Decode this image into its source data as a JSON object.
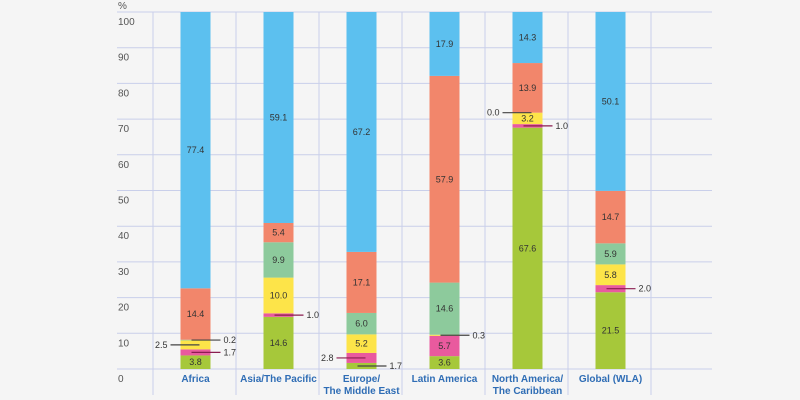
{
  "chart_data": {
    "type": "bar",
    "stacked": true,
    "ylabel": "%",
    "ylim": [
      0,
      100
    ],
    "yticks": [
      "0",
      "10",
      "20",
      "30",
      "40",
      "50",
      "60",
      "70",
      "80",
      "90",
      "100"
    ],
    "grid": true,
    "categories": [
      [
        "Africa"
      ],
      [
        "Asia/The Pacific"
      ],
      [
        "Europe/",
        "The Middle East"
      ],
      [
        "Latin America"
      ],
      [
        "North America/",
        "The Caribbean"
      ],
      [
        "Global (WLA)"
      ]
    ],
    "series": [
      {
        "color": "#a6c83a",
        "values": [
          3.8,
          14.6,
          1.7,
          3.6,
          67.6,
          21.5
        ]
      },
      {
        "color": "#e95a9e",
        "values": [
          1.7,
          1.0,
          2.8,
          5.7,
          1.0,
          2.0
        ]
      },
      {
        "color": "#fde449",
        "values": [
          2.5,
          10.0,
          5.2,
          0.3,
          3.2,
          5.8
        ]
      },
      {
        "color": "#8dca9c",
        "values": [
          0.2,
          9.9,
          6.0,
          14.6,
          0.0,
          5.9
        ]
      },
      {
        "color": "#f2866b",
        "values": [
          14.4,
          5.4,
          17.1,
          57.9,
          13.9,
          14.7
        ]
      },
      {
        "color": "#5cc0ef",
        "values": [
          77.4,
          59.1,
          67.2,
          17.9,
          14.3,
          50.1
        ]
      }
    ],
    "value_labels": [
      [
        "3.8",
        "1.7",
        "2.5",
        "0.2",
        "14.4",
        "77.4"
      ],
      [
        "14.6",
        "1.0",
        "10.0",
        "9.9",
        "5.4",
        "59.1"
      ],
      [
        "1.7",
        "2.8",
        "5.2",
        "6.0",
        "17.1",
        "67.2"
      ],
      [
        "3.6",
        "5.7",
        "0.3",
        "14.6",
        "57.9",
        "17.9"
      ],
      [
        "67.6",
        "1.0",
        "3.2",
        "0.0",
        "13.9",
        "14.3"
      ],
      [
        "21.5",
        "2.0",
        "5.8",
        "5.9",
        "14.7",
        "50.1"
      ]
    ]
  }
}
